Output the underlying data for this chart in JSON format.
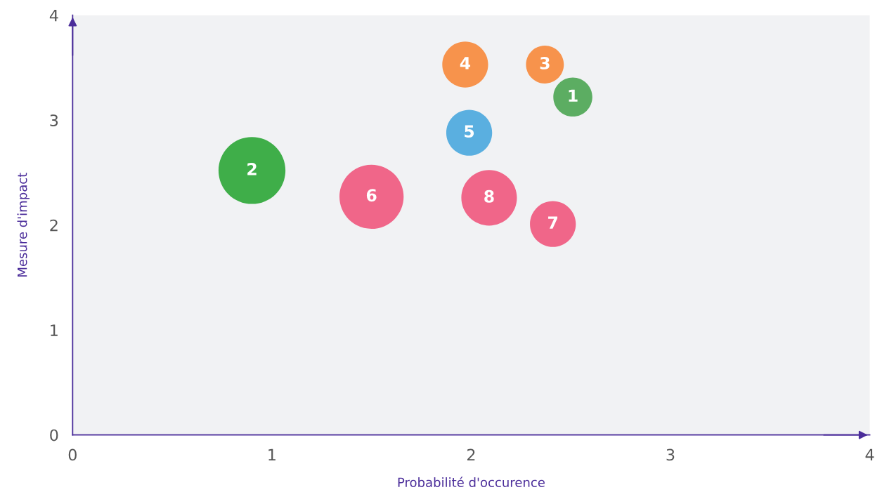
{
  "chart_data": {
    "type": "bubble",
    "xlabel": "Probabilité d'occurence",
    "ylabel": "Mesure d'impact",
    "x": [
      2.51,
      0.9,
      2.37,
      1.97,
      1.99,
      1.5,
      2.41,
      2.09
    ],
    "values": [
      3.22,
      2.52,
      3.53,
      3.53,
      2.88,
      2.27,
      2.01,
      2.26
    ],
    "sizes": [
      0.34,
      1,
      0.32,
      0.47,
      0.47,
      0.92,
      0.47,
      0.69
    ],
    "colors": [
      "#5cad62",
      "#3fae49",
      "#f7934c",
      "#f7934c",
      "#5aafe0",
      "#f06689",
      "#f06689",
      "#f06689"
    ],
    "annotations": [
      {
        "text": "1",
        "x": 2.51,
        "y": 3.22
      },
      {
        "text": "2",
        "x": 0.9,
        "y": 2.52
      },
      {
        "text": "3",
        "x": 2.37,
        "y": 3.53
      },
      {
        "text": "4",
        "x": 1.97,
        "y": 3.53
      },
      {
        "text": "5",
        "x": 1.99,
        "y": 2.88
      },
      {
        "text": "6",
        "x": 1.5,
        "y": 2.27
      },
      {
        "text": "7",
        "x": 2.41,
        "y": 2.01
      },
      {
        "text": "8",
        "x": 2.09,
        "y": 2.26
      }
    ],
    "xlim": [
      0,
      4
    ],
    "ylim": [
      0,
      4
    ],
    "xticks": [
      0,
      1,
      2,
      3,
      4
    ],
    "yticks": [
      0,
      1,
      2,
      3,
      4
    ],
    "grid": false,
    "legend": false
  }
}
